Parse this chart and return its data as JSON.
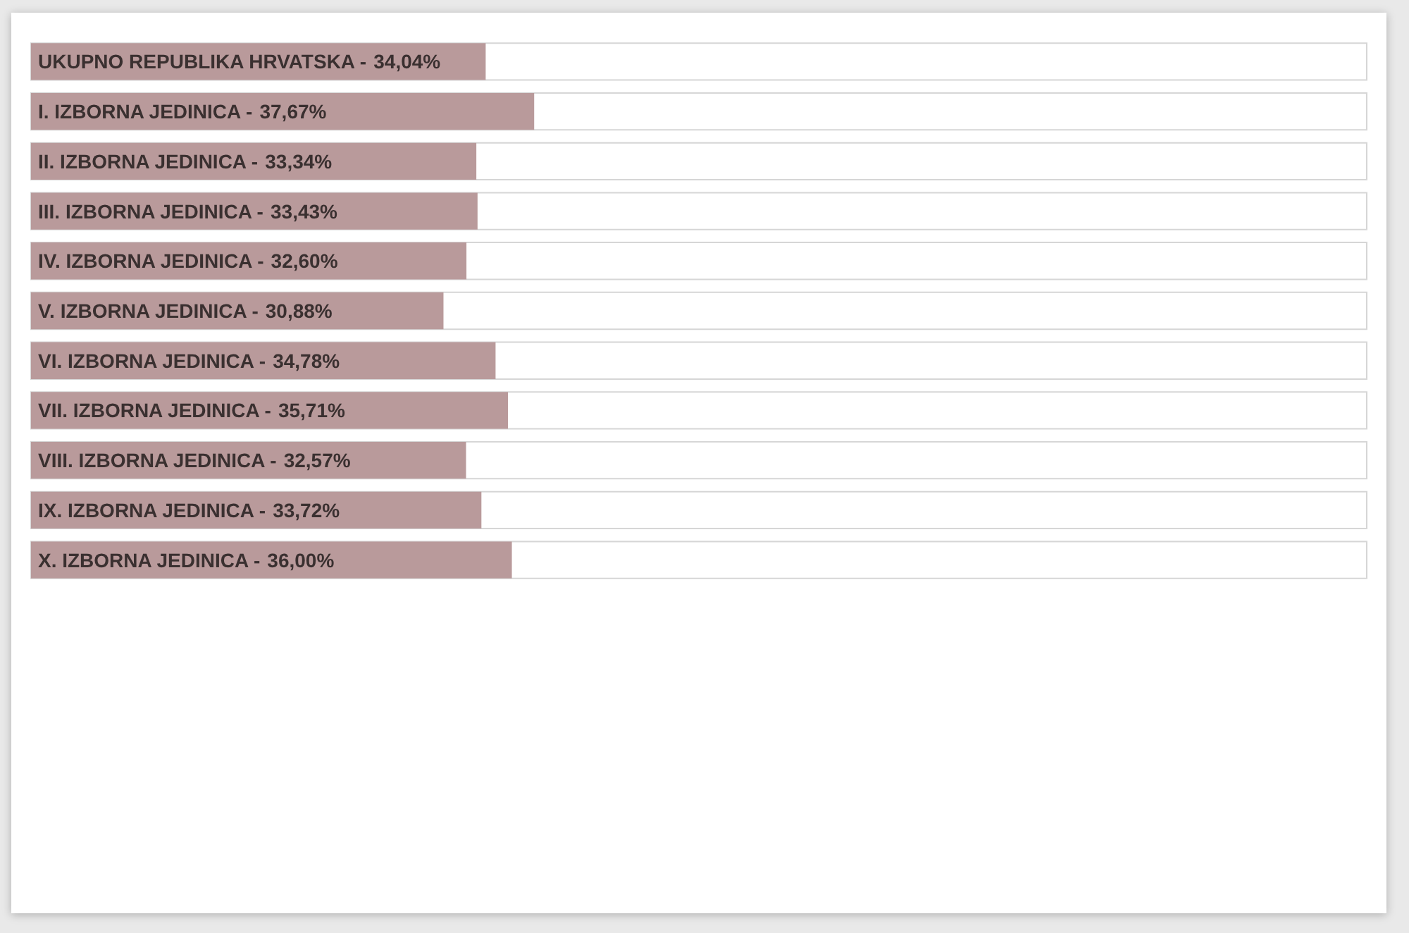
{
  "chart_data": {
    "type": "bar",
    "orientation": "horizontal",
    "categories": [
      "UKUPNO REPUBLIKA HRVATSKA -",
      "I. IZBORNA JEDINICA -",
      "II. IZBORNA JEDINICA -",
      "III. IZBORNA JEDINICA -",
      "IV. IZBORNA JEDINICA -",
      "V. IZBORNA JEDINICA -",
      "VI. IZBORNA JEDINICA -",
      "VII. IZBORNA JEDINICA -",
      "VIII. IZBORNA JEDINICA -",
      "IX. IZBORNA JEDINICA -",
      "X. IZBORNA JEDINICA -"
    ],
    "values": [
      34.04,
      37.67,
      33.34,
      33.43,
      32.6,
      30.88,
      34.78,
      35.71,
      32.57,
      33.72,
      36.0
    ],
    "value_labels": [
      "34,04%",
      "37,67%",
      "33,34%",
      "33,43%",
      "32,60%",
      "30,88%",
      "34,78%",
      "35,71%",
      "32,57%",
      "33,72%",
      "36,00%"
    ],
    "color": "#b99a9b",
    "xlim": [
      0,
      100
    ],
    "tick_labels": "y"
  }
}
